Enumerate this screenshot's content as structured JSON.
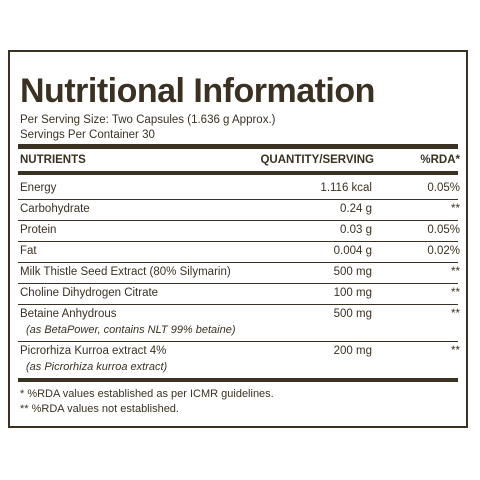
{
  "header": {
    "title": "Nutritional Information",
    "serving_size": "Per Serving Size: Two Capsules (1.636 g Approx.)",
    "servings": "Servings Per Container 30"
  },
  "table": {
    "columns": [
      "NUTRIENTS",
      "QUANTITY/SERVING",
      "%RDA*"
    ],
    "rows": [
      {
        "nutrient": "Energy",
        "quantity": "1.116 kcal",
        "rda": "0.05%"
      },
      {
        "nutrient": "Carbohydrate",
        "quantity": "0.24 g",
        "rda": "**"
      },
      {
        "nutrient": "Protein",
        "quantity": "0.03 g",
        "rda": "0.05%"
      },
      {
        "nutrient": "Fat",
        "quantity": "0.004 g",
        "rda": "0.02%"
      },
      {
        "nutrient": "Milk Thistle Seed Extract (80% Silymarin)",
        "quantity": "500 mg",
        "rda": "**"
      },
      {
        "nutrient": "Choline Dihydrogen Citrate",
        "quantity": "100 mg",
        "rda": "**"
      },
      {
        "nutrient": "Betaine Anhydrous",
        "note": "(as BetaPower, contains NLT 99% betaine)",
        "quantity": "500 mg",
        "rda": "**"
      },
      {
        "nutrient": "Picrorhiza Kurroa extract 4%",
        "note": "(as Picrorhiza kurroa extract)",
        "quantity": "200 mg",
        "rda": "**"
      }
    ]
  },
  "footnotes": [
    "* %RDA values established as per ICMR guidelines.",
    "** %RDA values not established."
  ]
}
